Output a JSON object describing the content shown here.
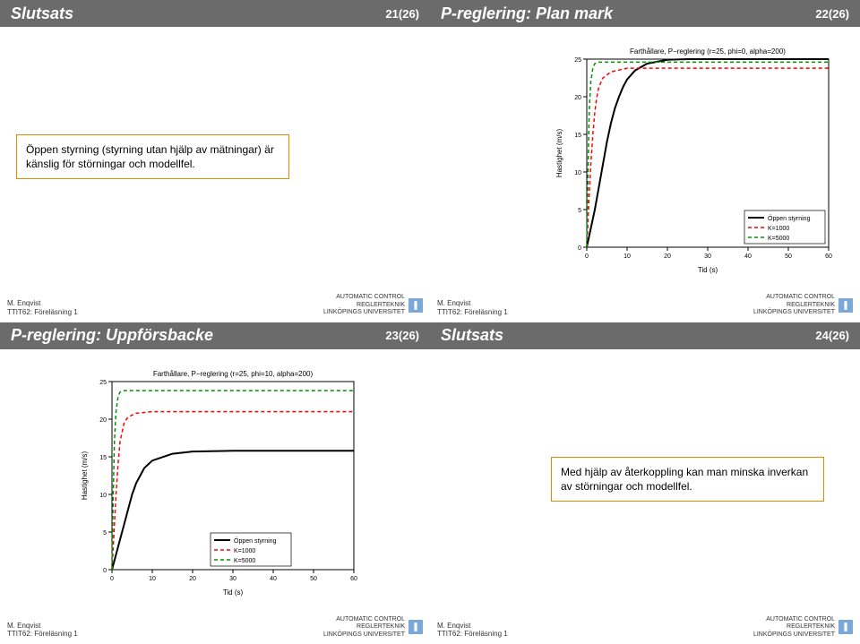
{
  "colors": {
    "titlebar_bg": "#6b6b6b",
    "titlebar_fg": "#ffffff",
    "box_border": "#e08a00",
    "axis": "#000000",
    "series_open": "#000000",
    "series_k1000": "#ff0000",
    "series_k5000": "#009000",
    "legend_box": "#000000",
    "uni_icon": "#7aa8d8"
  },
  "slides": [
    {
      "title": "Slutsats",
      "page": "21(26)",
      "box": "Öppen styrning (styrning utan hjälp av mätningar) är känslig för störningar och modellfel."
    },
    {
      "title": "P-reglering: Plan mark",
      "page": "22(26)",
      "chart": {
        "title": "Farthållare, P−reglering (r=25, phi=0, alpha=200)",
        "xlabel": "Tid (s)",
        "ylabel": "Hastighet (m/s)",
        "xlim": [
          0,
          60
        ],
        "ylim": [
          0,
          25
        ],
        "xtick_step": 10,
        "ytick_step": 5,
        "series": [
          {
            "name": "Öppen styrning",
            "color": "#000000",
            "dash": "none",
            "width": 2,
            "pts": [
              [
                0,
                0
              ],
              [
                1,
                2.5
              ],
              [
                2,
                5
              ],
              [
                3,
                8
              ],
              [
                4,
                11
              ],
              [
                5,
                14
              ],
              [
                6,
                16.5
              ],
              [
                7,
                18.5
              ],
              [
                8,
                20
              ],
              [
                9,
                21.3
              ],
              [
                10,
                22.3
              ],
              [
                12,
                23.5
              ],
              [
                15,
                24.4
              ],
              [
                20,
                24.9
              ],
              [
                25,
                25
              ],
              [
                60,
                25
              ]
            ]
          },
          {
            "name": "K=1000",
            "color": "#ff0000",
            "dash": "4,3",
            "width": 1.5,
            "pts": [
              [
                0,
                0
              ],
              [
                0.5,
                6
              ],
              [
                1,
                11
              ],
              [
                1.5,
                15
              ],
              [
                2,
                18
              ],
              [
                2.5,
                20
              ],
              [
                3,
                21.3
              ],
              [
                4,
                22.5
              ],
              [
                6,
                23.3
              ],
              [
                10,
                23.8
              ],
              [
                60,
                23.8
              ]
            ]
          },
          {
            "name": "K=5000",
            "color": "#009000",
            "dash": "4,3",
            "width": 1.5,
            "pts": [
              [
                0,
                0
              ],
              [
                0.3,
                10
              ],
              [
                0.6,
                18
              ],
              [
                1,
                22
              ],
              [
                1.5,
                23.8
              ],
              [
                2,
                24.4
              ],
              [
                3,
                24.6
              ],
              [
                5,
                24.6
              ],
              [
                60,
                24.6
              ]
            ]
          }
        ],
        "legend_pos": "bottom-right"
      }
    },
    {
      "title": "P-reglering: Uppförsbacke",
      "page": "23(26)",
      "chart": {
        "title": "Farthållare, P−reglering (r=25, phi=10, alpha=200)",
        "xlabel": "Tid (s)",
        "ylabel": "Hastighet (m/s)",
        "xlim": [
          0,
          60
        ],
        "ylim": [
          0,
          25
        ],
        "xtick_step": 10,
        "ytick_step": 5,
        "series": [
          {
            "name": "Öppen styrning",
            "color": "#000000",
            "dash": "none",
            "width": 2,
            "pts": [
              [
                0,
                0
              ],
              [
                1,
                2
              ],
              [
                2,
                4
              ],
              [
                3,
                6
              ],
              [
                4,
                8
              ],
              [
                5,
                10
              ],
              [
                6,
                11.5
              ],
              [
                8,
                13.5
              ],
              [
                10,
                14.5
              ],
              [
                15,
                15.4
              ],
              [
                20,
                15.7
              ],
              [
                30,
                15.8
              ],
              [
                60,
                15.8
              ]
            ]
          },
          {
            "name": "K=1000",
            "color": "#ff0000",
            "dash": "4,3",
            "width": 1.5,
            "pts": [
              [
                0,
                0
              ],
              [
                0.5,
                5
              ],
              [
                1,
                10
              ],
              [
                1.5,
                14
              ],
              [
                2,
                17
              ],
              [
                3,
                19.5
              ],
              [
                4,
                20.3
              ],
              [
                6,
                20.8
              ],
              [
                10,
                21
              ],
              [
                60,
                21
              ]
            ]
          },
          {
            "name": "K=5000",
            "color": "#009000",
            "dash": "4,3",
            "width": 1.5,
            "pts": [
              [
                0,
                0
              ],
              [
                0.3,
                10
              ],
              [
                0.6,
                17
              ],
              [
                1,
                21
              ],
              [
                1.5,
                23
              ],
              [
                2,
                23.6
              ],
              [
                3,
                23.8
              ],
              [
                5,
                23.8
              ],
              [
                60,
                23.8
              ]
            ]
          }
        ],
        "legend_pos": "bottom-center"
      }
    },
    {
      "title": "Slutsats",
      "page": "24(26)",
      "box": "Med hjälp av återkoppling kan man minska inverkan av störningar och modellfel."
    }
  ],
  "footer": {
    "author": "M. Enqvist",
    "course": "TTIT62: Föreläsning 1",
    "org1": "AUTOMATIC CONTROL",
    "org2": "REGLERTEKNIK",
    "org3": "LINKÖPINGS UNIVERSITET"
  },
  "chart_layout": {
    "axis_fontsize": 7,
    "title_fontsize": 8,
    "label_fontsize": 8,
    "legend_fontsize": 7
  }
}
